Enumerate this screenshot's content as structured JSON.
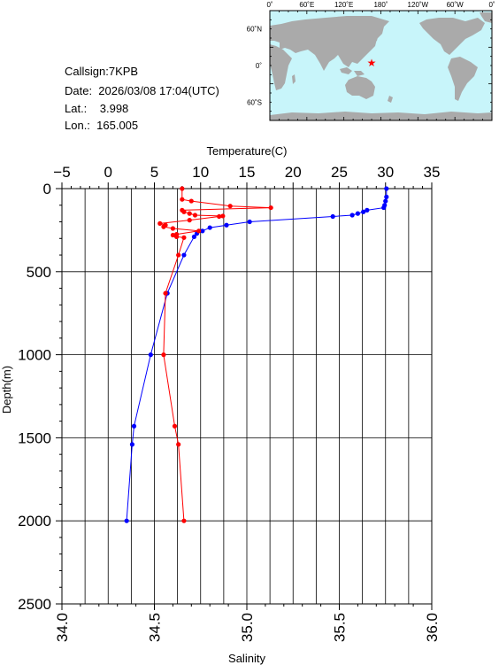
{
  "info": {
    "callsign": "Callsign:7KPB",
    "date": "Date:  2026/03/08 17:04(UTC)",
    "lat": "Lat.:    3.998",
    "lon": "Lon.:  165.005"
  },
  "map": {
    "lon_labels": [
      "0˚",
      "60˚E",
      "120˚E",
      "180˚",
      "120˚W",
      "60˚W",
      "0˚"
    ],
    "lat_labels": [
      "60˚N",
      "0˚",
      "60˚S"
    ],
    "ocean_color": "#c8f5fa",
    "land_color": "#aaaaaa",
    "marker_icon": "star-icon",
    "marker_color": "#ff0000",
    "station": {
      "lat": 3.998,
      "lon": 165.005
    }
  },
  "chart_data": {
    "type": "line",
    "ylabel": "Depth(m)",
    "y_ticks": [
      "0",
      "500",
      "1000",
      "1500",
      "2000",
      "2500"
    ],
    "ylim": [
      0,
      2500
    ],
    "y_inverted": true,
    "top_axis": {
      "label": "Temperature(C)",
      "ticks": [
        "−5",
        "0",
        "5",
        "10",
        "15",
        "20",
        "25",
        "30",
        "35"
      ],
      "range": [
        -5,
        35
      ]
    },
    "bottom_axis": {
      "label": "Salinity",
      "ticks": [
        "34.0",
        "34.5",
        "35.0",
        "35.5",
        "36.0"
      ],
      "range": [
        34.0,
        36.0
      ]
    },
    "grid": true,
    "series": [
      {
        "axis": "temperature",
        "color": "#0000ff",
        "points": [
          {
            "x": 30.1,
            "y": 0
          },
          {
            "x": 30.1,
            "y": 50
          },
          {
            "x": 30.0,
            "y": 75
          },
          {
            "x": 29.9,
            "y": 100
          },
          {
            "x": 29.8,
            "y": 115
          },
          {
            "x": 28.0,
            "y": 130
          },
          {
            "x": 27.6,
            "y": 140
          },
          {
            "x": 27.0,
            "y": 150
          },
          {
            "x": 26.4,
            "y": 160
          },
          {
            "x": 24.3,
            "y": 168
          },
          {
            "x": 15.3,
            "y": 200
          },
          {
            "x": 12.8,
            "y": 220
          },
          {
            "x": 11.0,
            "y": 235
          },
          {
            "x": 10.2,
            "y": 255
          },
          {
            "x": 9.6,
            "y": 270
          },
          {
            "x": 9.3,
            "y": 290
          },
          {
            "x": 8.2,
            "y": 400
          },
          {
            "x": 6.4,
            "y": 630
          },
          {
            "x": 4.6,
            "y": 1000
          },
          {
            "x": 2.8,
            "y": 1430
          },
          {
            "x": 2.6,
            "y": 1540
          },
          {
            "x": 2.0,
            "y": 2000
          }
        ]
      },
      {
        "axis": "salinity",
        "color": "#ff0000",
        "points": [
          {
            "x": 34.65,
            "y": 0
          },
          {
            "x": 34.65,
            "y": 65
          },
          {
            "x": 34.7,
            "y": 75
          },
          {
            "x": 34.91,
            "y": 105
          },
          {
            "x": 35.13,
            "y": 115
          },
          {
            "x": 34.65,
            "y": 130
          },
          {
            "x": 34.66,
            "y": 140
          },
          {
            "x": 34.69,
            "y": 150
          },
          {
            "x": 34.72,
            "y": 160
          },
          {
            "x": 34.87,
            "y": 165
          },
          {
            "x": 34.85,
            "y": 168
          },
          {
            "x": 34.69,
            "y": 190
          },
          {
            "x": 34.53,
            "y": 210
          },
          {
            "x": 34.56,
            "y": 220
          },
          {
            "x": 34.55,
            "y": 230
          },
          {
            "x": 34.6,
            "y": 240
          },
          {
            "x": 34.74,
            "y": 255
          },
          {
            "x": 34.62,
            "y": 275
          },
          {
            "x": 34.6,
            "y": 280
          },
          {
            "x": 34.62,
            "y": 290
          },
          {
            "x": 34.66,
            "y": 295
          },
          {
            "x": 34.63,
            "y": 400
          },
          {
            "x": 34.56,
            "y": 630
          },
          {
            "x": 34.55,
            "y": 1000
          },
          {
            "x": 34.61,
            "y": 1430
          },
          {
            "x": 34.63,
            "y": 1540
          },
          {
            "x": 34.66,
            "y": 2000
          }
        ]
      }
    ]
  }
}
